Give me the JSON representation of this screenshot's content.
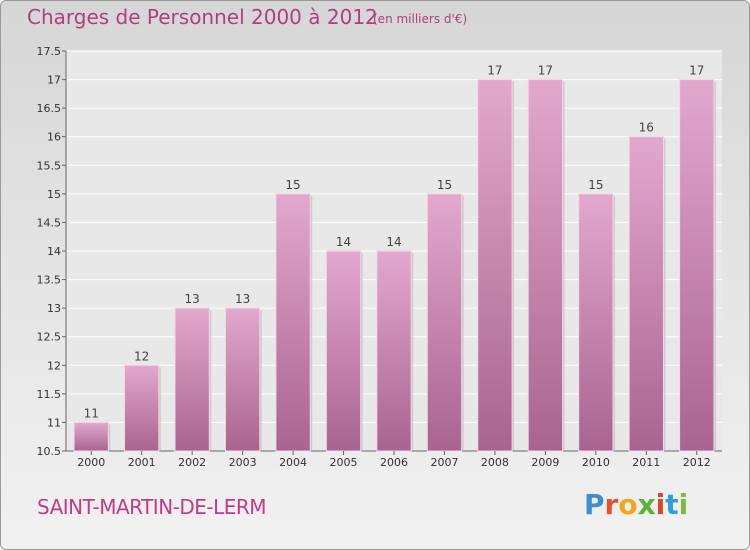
{
  "header": {
    "title": "Charges de Personnel 2000 à 2012",
    "subtitle": "(en milliers d'€)"
  },
  "footer": {
    "place": "SAINT-MARTIN-DE-LERM",
    "logo_letters": [
      "P",
      "r",
      "o",
      "x",
      "i",
      "t",
      "i"
    ]
  },
  "colors": {
    "bar_top": "#e3a8cd",
    "bar_bottom": "#a8648f",
    "title": "#b0407a",
    "place": "#c23b86"
  },
  "chart_data": {
    "type": "bar",
    "categories": [
      "2000",
      "2001",
      "2002",
      "2003",
      "2004",
      "2005",
      "2006",
      "2007",
      "2008",
      "2009",
      "2010",
      "2011",
      "2012"
    ],
    "values": [
      11,
      12,
      13,
      13,
      15,
      14,
      14,
      15,
      17,
      17,
      15,
      16,
      17
    ],
    "data_labels": [
      "11",
      "12",
      "13",
      "13",
      "15",
      "14",
      "14",
      "15",
      "17",
      "17",
      "15",
      "16",
      "17"
    ],
    "yticks": [
      "10.5",
      "11",
      "11.5",
      "12",
      "12.5",
      "13",
      "13.5",
      "14",
      "14.5",
      "15",
      "15.5",
      "16",
      "16.5",
      "17",
      "17.5"
    ],
    "ylim": [
      10.5,
      17.5
    ],
    "grid": true,
    "title": "Charges de Personnel 2000 à 2012",
    "xlabel": "",
    "ylabel": ""
  }
}
